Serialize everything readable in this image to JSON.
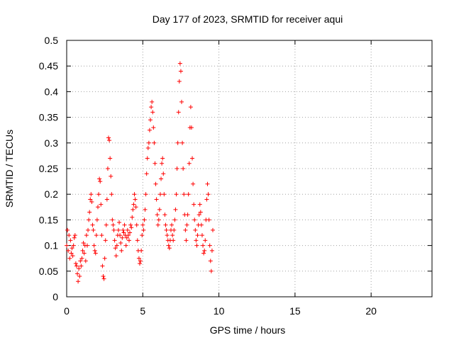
{
  "chart_data": {
    "type": "scatter",
    "title": "Day 177 of 2023, SRMTID for receiver aqui",
    "xlabel": "GPS time / hours",
    "ylabel": "SRMTID / TECUs",
    "xlim": [
      0,
      24
    ],
    "ylim": [
      0,
      0.5
    ],
    "x_ticks": [
      0,
      5,
      10,
      15,
      20
    ],
    "x_tick_labels": [
      "0",
      "5",
      "10",
      "15",
      "20"
    ],
    "y_ticks": [
      0,
      0.05,
      0.1,
      0.15,
      0.2,
      0.25,
      0.3,
      0.35,
      0.4,
      0.45,
      0.5
    ],
    "y_tick_labels": [
      "0",
      "0.05",
      "0.1",
      "0.15",
      "0.2",
      "0.25",
      "0.3",
      "0.35",
      "0.4",
      "0.45",
      "0.5"
    ],
    "grid": true,
    "marker": "+",
    "colors": {
      "series": "#ff0000",
      "grid": "#a0a0a0",
      "axis": "#000000"
    },
    "series": [
      {
        "name": "SRMTID",
        "points": [
          [
            0.0,
            0.1
          ],
          [
            0.05,
            0.13
          ],
          [
            0.1,
            0.09
          ],
          [
            0.15,
            0.12
          ],
          [
            0.2,
            0.075
          ],
          [
            0.25,
            0.11
          ],
          [
            0.3,
            0.085
          ],
          [
            0.35,
            0.095
          ],
          [
            0.4,
            0.08
          ],
          [
            0.45,
            0.1
          ],
          [
            0.5,
            0.115
          ],
          [
            0.55,
            0.12
          ],
          [
            0.6,
            0.065
          ],
          [
            0.65,
            0.06
          ],
          [
            0.7,
            0.045
          ],
          [
            0.75,
            0.03
          ],
          [
            0.8,
            0.055
          ],
          [
            0.85,
            0.04
          ],
          [
            0.9,
            0.07
          ],
          [
            0.95,
            0.06
          ],
          [
            1.0,
            0.075
          ],
          [
            1.05,
            0.09
          ],
          [
            1.1,
            0.105
          ],
          [
            1.15,
            0.085
          ],
          [
            1.2,
            0.1
          ],
          [
            1.25,
            0.07
          ],
          [
            1.3,
            0.12
          ],
          [
            1.35,
            0.1
          ],
          [
            1.4,
            0.13
          ],
          [
            1.45,
            0.15
          ],
          [
            1.5,
            0.165
          ],
          [
            1.55,
            0.19
          ],
          [
            1.6,
            0.2
          ],
          [
            1.65,
            0.185
          ],
          [
            1.7,
            0.14
          ],
          [
            1.75,
            0.13
          ],
          [
            1.8,
            0.1
          ],
          [
            1.85,
            0.09
          ],
          [
            1.9,
            0.085
          ],
          [
            1.95,
            0.12
          ],
          [
            2.0,
            0.15
          ],
          [
            2.05,
            0.175
          ],
          [
            2.1,
            0.2
          ],
          [
            2.15,
            0.23
          ],
          [
            2.2,
            0.225
          ],
          [
            2.25,
            0.18
          ],
          [
            2.3,
            0.12
          ],
          [
            2.35,
            0.06
          ],
          [
            2.4,
            0.04
          ],
          [
            2.45,
            0.035
          ],
          [
            2.5,
            0.075
          ],
          [
            2.55,
            0.11
          ],
          [
            2.6,
            0.14
          ],
          [
            2.65,
            0.19
          ],
          [
            2.7,
            0.25
          ],
          [
            2.75,
            0.31
          ],
          [
            2.8,
            0.305
          ],
          [
            2.85,
            0.27
          ],
          [
            2.9,
            0.235
          ],
          [
            2.95,
            0.2
          ],
          [
            3.0,
            0.15
          ],
          [
            3.05,
            0.14
          ],
          [
            3.1,
            0.13
          ],
          [
            3.15,
            0.11
          ],
          [
            3.2,
            0.095
          ],
          [
            3.25,
            0.08
          ],
          [
            3.3,
            0.1
          ],
          [
            3.35,
            0.12
          ],
          [
            3.4,
            0.13
          ],
          [
            3.45,
            0.145
          ],
          [
            3.5,
            0.12
          ],
          [
            3.55,
            0.105
          ],
          [
            3.6,
            0.09
          ],
          [
            3.65,
            0.115
          ],
          [
            3.7,
            0.13
          ],
          [
            3.75,
            0.125
          ],
          [
            3.8,
            0.14
          ],
          [
            3.85,
            0.12
          ],
          [
            3.9,
            0.1
          ],
          [
            3.95,
            0.115
          ],
          [
            4.0,
            0.13
          ],
          [
            4.05,
            0.12
          ],
          [
            4.1,
            0.11
          ],
          [
            4.15,
            0.125
          ],
          [
            4.2,
            0.14
          ],
          [
            4.25,
            0.135
          ],
          [
            4.3,
            0.155
          ],
          [
            4.35,
            0.17
          ],
          [
            4.4,
            0.18
          ],
          [
            4.45,
            0.2
          ],
          [
            4.5,
            0.19
          ],
          [
            4.55,
            0.175
          ],
          [
            4.6,
            0.14
          ],
          [
            4.65,
            0.11
          ],
          [
            4.7,
            0.09
          ],
          [
            4.75,
            0.075
          ],
          [
            4.8,
            0.065
          ],
          [
            4.85,
            0.07
          ],
          [
            4.9,
            0.09
          ],
          [
            4.95,
            0.12
          ],
          [
            5.0,
            0.14
          ],
          [
            5.05,
            0.13
          ],
          [
            5.1,
            0.15
          ],
          [
            5.15,
            0.17
          ],
          [
            5.2,
            0.2
          ],
          [
            5.25,
            0.24
          ],
          [
            5.3,
            0.27
          ],
          [
            5.35,
            0.29
          ],
          [
            5.4,
            0.3
          ],
          [
            5.45,
            0.325
          ],
          [
            5.5,
            0.345
          ],
          [
            5.55,
            0.37
          ],
          [
            5.6,
            0.38
          ],
          [
            5.65,
            0.36
          ],
          [
            5.7,
            0.33
          ],
          [
            5.75,
            0.3
          ],
          [
            5.8,
            0.26
          ],
          [
            5.85,
            0.22
          ],
          [
            5.9,
            0.19
          ],
          [
            5.95,
            0.16
          ],
          [
            6.0,
            0.14
          ],
          [
            6.05,
            0.15
          ],
          [
            6.1,
            0.17
          ],
          [
            6.15,
            0.2
          ],
          [
            6.2,
            0.23
          ],
          [
            6.25,
            0.26
          ],
          [
            6.3,
            0.27
          ],
          [
            6.35,
            0.24
          ],
          [
            6.4,
            0.2
          ],
          [
            6.45,
            0.16
          ],
          [
            6.5,
            0.14
          ],
          [
            6.55,
            0.13
          ],
          [
            6.6,
            0.12
          ],
          [
            6.65,
            0.11
          ],
          [
            6.7,
            0.1
          ],
          [
            6.75,
            0.095
          ],
          [
            6.8,
            0.11
          ],
          [
            6.85,
            0.13
          ],
          [
            6.9,
            0.14
          ],
          [
            6.95,
            0.12
          ],
          [
            7.0,
            0.11
          ],
          [
            7.05,
            0.13
          ],
          [
            7.1,
            0.15
          ],
          [
            7.15,
            0.17
          ],
          [
            7.2,
            0.2
          ],
          [
            7.25,
            0.25
          ],
          [
            7.3,
            0.3
          ],
          [
            7.35,
            0.36
          ],
          [
            7.4,
            0.42
          ],
          [
            7.45,
            0.455
          ],
          [
            7.5,
            0.44
          ],
          [
            7.55,
            0.38
          ],
          [
            7.6,
            0.3
          ],
          [
            7.65,
            0.25
          ],
          [
            7.7,
            0.2
          ],
          [
            7.75,
            0.16
          ],
          [
            7.8,
            0.13
          ],
          [
            7.85,
            0.11
          ],
          [
            7.9,
            0.14
          ],
          [
            7.95,
            0.16
          ],
          [
            8.0,
            0.2
          ],
          [
            8.05,
            0.26
          ],
          [
            8.1,
            0.33
          ],
          [
            8.15,
            0.37
          ],
          [
            8.2,
            0.33
          ],
          [
            8.25,
            0.27
          ],
          [
            8.3,
            0.22
          ],
          [
            8.35,
            0.18
          ],
          [
            8.4,
            0.15
          ],
          [
            8.45,
            0.13
          ],
          [
            8.5,
            0.11
          ],
          [
            8.55,
            0.1
          ],
          [
            8.6,
            0.12
          ],
          [
            8.65,
            0.14
          ],
          [
            8.7,
            0.16
          ],
          [
            8.75,
            0.18
          ],
          [
            8.8,
            0.165
          ],
          [
            8.85,
            0.14
          ],
          [
            8.9,
            0.12
          ],
          [
            8.95,
            0.1
          ],
          [
            9.0,
            0.085
          ],
          [
            9.05,
            0.09
          ],
          [
            9.1,
            0.11
          ],
          [
            9.15,
            0.15
          ],
          [
            9.2,
            0.19
          ],
          [
            9.25,
            0.22
          ],
          [
            9.3,
            0.2
          ],
          [
            9.35,
            0.15
          ],
          [
            9.4,
            0.1
          ],
          [
            9.45,
            0.07
          ],
          [
            9.5,
            0.05
          ],
          [
            9.55,
            0.09
          ],
          [
            9.6,
            0.13
          ]
        ]
      }
    ]
  }
}
